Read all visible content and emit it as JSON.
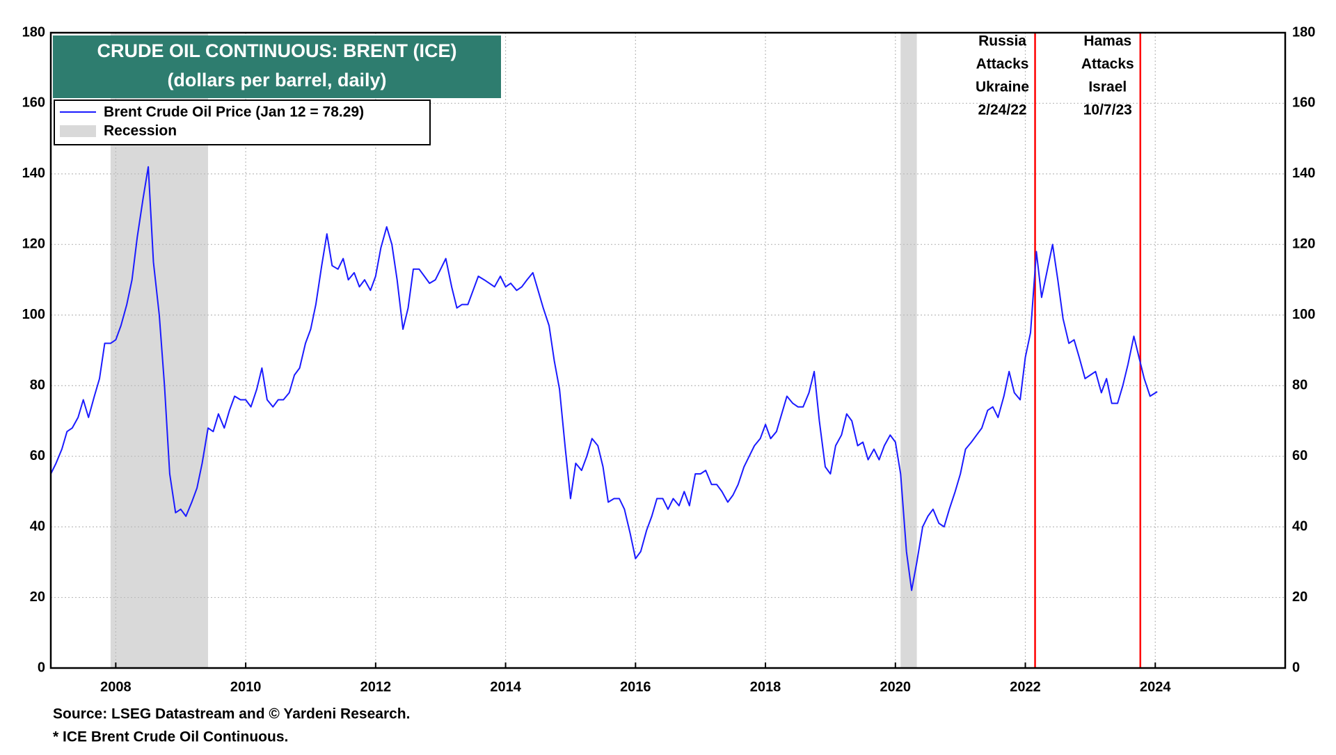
{
  "chart_data": {
    "type": "line",
    "title": "CRUDE OIL CONTINUOUS: BRENT (ICE)",
    "subtitle": "(dollars per barrel, daily)",
    "source": "Source: LSEG Datastream and © Yardeni Research.",
    "footnote": "* ICE Brent Crude Oil Continuous.",
    "recession_label": "Recession",
    "recession_color": "#d9d9d9",
    "recessions": [
      [
        2007.92,
        2009.42
      ],
      [
        2020.08,
        2020.33
      ]
    ],
    "events": [
      {
        "x": 2022.15,
        "lines": [
          "Russia",
          "Attacks",
          "Ukraine",
          "2/24/22"
        ]
      },
      {
        "x": 2023.77,
        "lines": [
          "Hamas",
          "Attacks",
          "Israel",
          "10/7/23"
        ]
      }
    ],
    "event_color": "#ff0000",
    "x": [
      2007.0,
      2007.08,
      2007.17,
      2007.25,
      2007.33,
      2007.42,
      2007.5,
      2007.58,
      2007.67,
      2007.75,
      2007.83,
      2007.92,
      2008.0,
      2008.08,
      2008.17,
      2008.25,
      2008.33,
      2008.42,
      2008.5,
      2008.58,
      2008.67,
      2008.75,
      2008.83,
      2008.92,
      2009.0,
      2009.08,
      2009.17,
      2009.25,
      2009.33,
      2009.42,
      2009.5,
      2009.58,
      2009.67,
      2009.75,
      2009.83,
      2009.92,
      2010.0,
      2010.08,
      2010.17,
      2010.25,
      2010.33,
      2010.42,
      2010.5,
      2010.58,
      2010.67,
      2010.75,
      2010.83,
      2010.92,
      2011.0,
      2011.08,
      2011.17,
      2011.25,
      2011.33,
      2011.42,
      2011.5,
      2011.58,
      2011.67,
      2011.75,
      2011.83,
      2011.92,
      2012.0,
      2012.08,
      2012.17,
      2012.25,
      2012.33,
      2012.42,
      2012.5,
      2012.58,
      2012.67,
      2012.75,
      2012.83,
      2012.92,
      2013.0,
      2013.08,
      2013.17,
      2013.25,
      2013.33,
      2013.42,
      2013.5,
      2013.58,
      2013.67,
      2013.75,
      2013.83,
      2013.92,
      2014.0,
      2014.08,
      2014.17,
      2014.25,
      2014.33,
      2014.42,
      2014.5,
      2014.58,
      2014.67,
      2014.75,
      2014.83,
      2014.92,
      2015.0,
      2015.08,
      2015.17,
      2015.25,
      2015.33,
      2015.42,
      2015.5,
      2015.58,
      2015.67,
      2015.75,
      2015.83,
      2015.92,
      2016.0,
      2016.08,
      2016.17,
      2016.25,
      2016.33,
      2016.42,
      2016.5,
      2016.58,
      2016.67,
      2016.75,
      2016.83,
      2016.92,
      2017.0,
      2017.08,
      2017.17,
      2017.25,
      2017.33,
      2017.42,
      2017.5,
      2017.58,
      2017.67,
      2017.75,
      2017.83,
      2017.92,
      2018.0,
      2018.08,
      2018.17,
      2018.25,
      2018.33,
      2018.42,
      2018.5,
      2018.58,
      2018.67,
      2018.75,
      2018.83,
      2018.92,
      2019.0,
      2019.08,
      2019.17,
      2019.25,
      2019.33,
      2019.42,
      2019.5,
      2019.58,
      2019.67,
      2019.75,
      2019.83,
      2019.92,
      2020.0,
      2020.08,
      2020.17,
      2020.25,
      2020.33,
      2020.42,
      2020.5,
      2020.58,
      2020.67,
      2020.75,
      2020.83,
      2020.92,
      2021.0,
      2021.08,
      2021.17,
      2021.25,
      2021.33,
      2021.42,
      2021.5,
      2021.58,
      2021.67,
      2021.75,
      2021.83,
      2021.92,
      2022.0,
      2022.08,
      2022.17,
      2022.25,
      2022.33,
      2022.42,
      2022.5,
      2022.58,
      2022.67,
      2022.75,
      2022.83,
      2022.92,
      2023.0,
      2023.08,
      2023.17,
      2023.25,
      2023.33,
      2023.42,
      2023.5,
      2023.58,
      2023.67,
      2023.75,
      2023.83,
      2023.92,
      2024.03
    ],
    "series": [
      {
        "name": "Brent Crude Oil Price (Jan 12 = 78.29)",
        "color": "#1a1aff",
        "values": [
          55,
          58,
          62,
          67,
          68,
          71,
          76,
          71,
          77,
          82,
          92,
          92,
          93,
          97,
          103,
          110,
          122,
          133,
          142,
          115,
          100,
          80,
          55,
          44,
          45,
          43,
          47,
          51,
          58,
          68,
          67,
          72,
          68,
          73,
          77,
          76,
          76,
          74,
          79,
          85,
          76,
          74,
          76,
          76,
          78,
          83,
          85,
          92,
          96,
          103,
          114,
          123,
          114,
          113,
          116,
          110,
          112,
          108,
          110,
          107,
          111,
          119,
          125,
          120,
          110,
          96,
          102,
          113,
          113,
          111,
          109,
          110,
          113,
          116,
          108,
          102,
          103,
          103,
          107,
          111,
          110,
          109,
          108,
          111,
          108,
          109,
          107,
          108,
          110,
          112,
          107,
          102,
          97,
          87,
          79,
          62,
          48,
          58,
          56,
          60,
          65,
          63,
          57,
          47,
          48,
          48,
          45,
          38,
          31,
          33,
          39,
          43,
          48,
          48,
          45,
          48,
          46,
          50,
          46,
          55,
          55,
          56,
          52,
          52,
          50,
          47,
          49,
          52,
          57,
          60,
          63,
          65,
          69,
          65,
          67,
          72,
          77,
          75,
          74,
          74,
          78,
          84,
          70,
          57,
          55,
          63,
          66,
          72,
          70,
          63,
          64,
          59,
          62,
          59,
          63,
          66,
          64,
          55,
          33,
          22,
          30,
          40,
          43,
          45,
          41,
          40,
          45,
          50,
          55,
          62,
          64,
          66,
          68,
          73,
          74,
          71,
          77,
          84,
          78,
          76,
          88,
          95,
          118,
          105,
          112,
          120,
          110,
          99,
          92,
          93,
          88,
          82,
          83,
          84,
          78,
          82,
          75,
          75,
          80,
          86,
          94,
          88,
          82,
          77,
          78.29
        ]
      }
    ],
    "xlim": [
      2007,
      2026
    ],
    "xticks": [
      2008,
      2010,
      2012,
      2014,
      2016,
      2018,
      2020,
      2022,
      2024
    ],
    "ylim": [
      0,
      180
    ],
    "yticks": [
      0,
      20,
      40,
      60,
      80,
      100,
      120,
      140,
      160,
      180
    ],
    "grid": true
  }
}
